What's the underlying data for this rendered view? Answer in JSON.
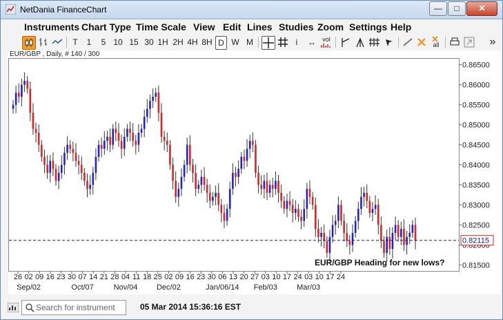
{
  "window": {
    "title": "NetDania FinanceChart"
  },
  "menu": [
    "Instruments",
    "Chart Type",
    "Time Scale",
    "View",
    "Edit",
    "Lines",
    "Studies",
    "Zoom",
    "Settings",
    "Help"
  ],
  "toolbar": {
    "timeframes": [
      "T",
      "1",
      "5",
      "10",
      "15",
      "30",
      "1H",
      "2H",
      "4H",
      "8H",
      "D",
      "W",
      "M"
    ],
    "active_timeframe": "D",
    "vol_label": "vol",
    "all_label": "all",
    "more_label": "»"
  },
  "chart": {
    "caption": "EUR/GBP , Daily, # 140 / 300",
    "annotation": "EUR/GBP Heading for new lows?",
    "last_price_label": "0.82115"
  },
  "status": {
    "search_placeholder": "Search for instrument",
    "timestamp": "05 Mar 2014 15:36:16 EST"
  },
  "colors": {
    "up": "#2222cc",
    "down": "#dd2222",
    "lastline": "#1a1a8c",
    "accent": "#f39a26"
  },
  "chart_data": {
    "type": "candlestick",
    "title": "EUR/GBP , Daily, # 140 / 300",
    "ylim": [
      0.8135,
      0.8665
    ],
    "y_ticks": [
      0.865,
      0.86,
      0.855,
      0.85,
      0.845,
      0.84,
      0.835,
      0.83,
      0.825,
      0.82,
      0.815
    ],
    "y_tick_labels": [
      "0.86500",
      "0.86000",
      "0.85500",
      "0.85000",
      "0.84500",
      "0.84000",
      "0.83500",
      "0.83000",
      "0.82500",
      "0.82000",
      "0.81500"
    ],
    "x_day_labels": [
      "26",
      "02",
      "09",
      "16",
      "23",
      "30",
      "07",
      "14",
      "21",
      "28",
      "04",
      "11",
      "18",
      "25",
      "02",
      "09",
      "16",
      "23",
      "30",
      "06",
      "13",
      "20",
      "27",
      "03",
      "10",
      "17",
      "24",
      "03",
      "10",
      "17",
      "24"
    ],
    "x_month_labels": [
      {
        "label": "Sep/02",
        "week": 1
      },
      {
        "label": "Oct/07",
        "week": 6
      },
      {
        "label": "Nov/04",
        "week": 10
      },
      {
        "label": "Dec/02",
        "week": 14
      },
      {
        "label": "Jan/06/14",
        "week": 19
      },
      {
        "label": "Feb/03",
        "week": 23
      },
      {
        "label": "Mar/03",
        "week": 27
      }
    ],
    "last_price": 0.82115,
    "grid": false,
    "close": [
      0.855,
      0.858,
      0.857,
      0.86,
      0.861,
      0.859,
      0.853,
      0.849,
      0.848,
      0.845,
      0.842,
      0.84,
      0.838,
      0.841,
      0.839,
      0.836,
      0.838,
      0.84,
      0.843,
      0.845,
      0.844,
      0.843,
      0.841,
      0.84,
      0.838,
      0.836,
      0.834,
      0.835,
      0.838,
      0.842,
      0.845,
      0.844,
      0.846,
      0.847,
      0.845,
      0.849,
      0.848,
      0.846,
      0.844,
      0.847,
      0.849,
      0.848,
      0.846,
      0.845,
      0.848,
      0.849,
      0.852,
      0.854,
      0.856,
      0.857,
      0.858,
      0.853,
      0.847,
      0.846,
      0.845,
      0.84,
      0.836,
      0.832,
      0.834,
      0.837,
      0.84,
      0.845,
      0.84,
      0.838,
      0.834,
      0.835,
      0.837,
      0.835,
      0.833,
      0.831,
      0.832,
      0.833,
      0.83,
      0.828,
      0.826,
      0.829,
      0.834,
      0.838,
      0.837,
      0.839,
      0.842,
      0.841,
      0.844,
      0.846,
      0.845,
      0.838,
      0.835,
      0.834,
      0.836,
      0.833,
      0.835,
      0.834,
      0.836,
      0.833,
      0.831,
      0.829,
      0.831,
      0.83,
      0.828,
      0.829,
      0.827,
      0.826,
      0.829,
      0.834,
      0.832,
      0.83,
      0.824,
      0.822,
      0.823,
      0.821,
      0.818,
      0.822,
      0.825,
      0.826,
      0.83,
      0.826,
      0.823,
      0.821,
      0.82,
      0.823,
      0.826,
      0.829,
      0.832,
      0.833,
      0.831,
      0.828,
      0.829,
      0.83,
      0.825,
      0.821,
      0.818,
      0.822,
      0.819,
      0.823,
      0.825,
      0.822,
      0.824,
      0.82,
      0.822,
      0.823,
      0.825,
      0.821
    ]
  }
}
